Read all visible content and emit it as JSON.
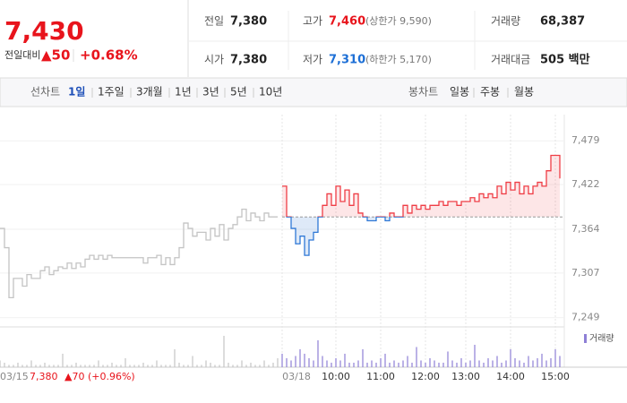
{
  "header": {
    "price": "7,430",
    "change_label": "전일대비",
    "change": "▲50",
    "change_rate": "+0.68%",
    "stats": [
      {
        "label": "전일",
        "value": "7,380"
      },
      {
        "label": "고가",
        "value": "7,460",
        "note": "(상한가 9,590)"
      },
      {
        "label": "거래량",
        "value": "68,387"
      },
      {
        "label": "시가",
        "value": "7,380"
      },
      {
        "label": "저가",
        "value": "7,310",
        "note": "(하한가 5,170)"
      },
      {
        "label": "거래대금",
        "value": "505 백만"
      }
    ]
  },
  "tabs": {
    "line_label": "선차트",
    "line_periods": [
      "1일",
      "1주일",
      "3개월",
      "1년",
      "3년",
      "5년",
      "10년"
    ],
    "candle_label": "봉차트",
    "candle_periods": [
      "일봉",
      "주봉",
      "월봉"
    ]
  },
  "footer": {
    "date": "03/15",
    "close": "7,380",
    "change": "▲70 (+0.96%)"
  },
  "chart_data": {
    "type": "line",
    "xlim": [
      0,
      126
    ],
    "ylim": [
      7237,
      7513
    ],
    "xticks": [
      {
        "value": 63,
        "label": "03/18"
      },
      {
        "value": 75,
        "label": "10:00"
      },
      {
        "value": 85,
        "label": "11:00"
      },
      {
        "value": 95,
        "label": "12:00"
      },
      {
        "value": 104,
        "label": "13:00"
      },
      {
        "value": 114,
        "label": "14:00"
      },
      {
        "value": 124,
        "label": "15:00"
      }
    ],
    "yticks": [
      {
        "value": 7249,
        "label": "7,249"
      },
      {
        "value": 7307,
        "label": "7,307"
      },
      {
        "value": 7364,
        "label": "7,364"
      },
      {
        "value": 7422,
        "label": "7,422"
      },
      {
        "value": 7479,
        "label": "7,479"
      }
    ],
    "grid": true,
    "baseline": 7380,
    "series": [
      {
        "color": "#c4c4c4",
        "values": [
          7365,
          7340,
          7275,
          7300,
          7300,
          7290,
          7305,
          7300,
          7300,
          7310,
          7315,
          7305,
          7310,
          7315,
          7313,
          7320,
          7313,
          7320,
          7315,
          7325,
          7330,
          7325,
          7330,
          7325,
          7330,
          7327,
          7327,
          7327,
          7327,
          7327,
          7327,
          7327,
          7320,
          7327,
          7327,
          7330,
          7318,
          7327,
          7318,
          7327,
          7340,
          7372,
          7365,
          7355,
          7360,
          7360,
          7350,
          7365,
          7355,
          7370,
          7350,
          7365,
          7370,
          7380,
          7390,
          7375,
          7385,
          7380,
          7375,
          7385,
          7380,
          7380,
          7380,
          null,
          null,
          null,
          null,
          null,
          null,
          null,
          null,
          null,
          null,
          null,
          null,
          null,
          null,
          null,
          null,
          null,
          null,
          null,
          null,
          null,
          null,
          null,
          null,
          null,
          null,
          null,
          null,
          null,
          null,
          null,
          null,
          null,
          null,
          null,
          null,
          null,
          null,
          null,
          null,
          null,
          null,
          null,
          null,
          null,
          null,
          null,
          null,
          null,
          null,
          null,
          null,
          null,
          null,
          null,
          null,
          null,
          null,
          null,
          null,
          null,
          null,
          null
        ]
      },
      {
        "color": "#ef3d45",
        "below_color": "#2f78d6",
        "values": [
          null,
          null,
          null,
          null,
          null,
          null,
          null,
          null,
          null,
          null,
          null,
          null,
          null,
          null,
          null,
          null,
          null,
          null,
          null,
          null,
          null,
          null,
          null,
          null,
          null,
          null,
          null,
          null,
          null,
          null,
          null,
          null,
          null,
          null,
          null,
          null,
          null,
          null,
          null,
          null,
          null,
          null,
          null,
          null,
          null,
          null,
          null,
          null,
          null,
          null,
          null,
          null,
          null,
          null,
          null,
          null,
          null,
          null,
          null,
          null,
          null,
          null,
          null,
          7420,
          7380,
          7365,
          7345,
          7355,
          7330,
          7350,
          7360,
          7380,
          7395,
          7410,
          7395,
          7420,
          7400,
          7415,
          7395,
          7410,
          7385,
          7380,
          7375,
          7375,
          7380,
          7380,
          7375,
          7385,
          7380,
          7380,
          7395,
          7385,
          7395,
          7390,
          7395,
          7390,
          7395,
          7395,
          7400,
          7395,
          7400,
          7400,
          7395,
          7400,
          7400,
          7405,
          7400,
          7410,
          7405,
          7410,
          7405,
          7420,
          7410,
          7425,
          7415,
          7425,
          7410,
          7420,
          7410,
          7420,
          7425,
          7420,
          7440,
          7460,
          7460,
          7430
        ]
      }
    ],
    "volume": {
      "name": "거래량",
      "ylim": [
        0,
        16
      ],
      "series": [
        {
          "color": "#c4c4c4",
          "values": [
            3,
            2,
            1,
            1,
            2,
            1,
            1,
            3,
            1,
            1,
            2,
            1,
            1,
            1,
            6,
            1,
            1,
            2,
            1,
            1,
            1,
            1,
            3,
            1,
            1,
            2,
            1,
            1,
            4,
            1,
            1,
            1,
            2,
            1,
            1,
            3,
            1,
            1,
            1,
            8,
            2,
            1,
            1,
            5,
            1,
            1,
            3,
            2,
            1,
            1,
            14,
            2,
            1,
            1,
            3,
            1,
            2,
            1,
            1,
            3,
            1,
            2,
            4,
            null,
            null,
            null,
            null,
            null,
            null,
            null,
            null,
            null,
            null,
            null,
            null,
            null,
            null,
            null,
            null,
            null,
            null,
            null,
            null,
            null,
            null,
            null,
            null,
            null,
            null,
            null,
            null,
            null,
            null,
            null,
            null,
            null,
            null,
            null,
            null,
            null,
            null,
            null,
            null,
            null,
            null,
            null,
            null,
            null,
            null,
            null,
            null,
            null,
            null,
            null,
            null,
            null,
            null,
            null,
            null,
            null,
            null,
            null,
            null,
            null,
            null,
            null
          ]
        },
        {
          "color": "#8e7fd6",
          "values": [
            null,
            null,
            null,
            null,
            null,
            null,
            null,
            null,
            null,
            null,
            null,
            null,
            null,
            null,
            null,
            null,
            null,
            null,
            null,
            null,
            null,
            null,
            null,
            null,
            null,
            null,
            null,
            null,
            null,
            null,
            null,
            null,
            null,
            null,
            null,
            null,
            null,
            null,
            null,
            null,
            null,
            null,
            null,
            null,
            null,
            null,
            null,
            null,
            null,
            null,
            null,
            null,
            null,
            null,
            null,
            null,
            null,
            null,
            null,
            null,
            null,
            null,
            null,
            6,
            4,
            3,
            5,
            8,
            6,
            4,
            3,
            12,
            5,
            3,
            2,
            4,
            3,
            6,
            2,
            2,
            3,
            8,
            2,
            3,
            2,
            4,
            6,
            2,
            3,
            2,
            3,
            5,
            2,
            9,
            3,
            2,
            4,
            3,
            2,
            2,
            7,
            3,
            2,
            4,
            2,
            3,
            10,
            3,
            2,
            4,
            3,
            5,
            2,
            3,
            8,
            4,
            3,
            2,
            5,
            3,
            4,
            6,
            3,
            4,
            8,
            5
          ]
        }
      ]
    }
  }
}
